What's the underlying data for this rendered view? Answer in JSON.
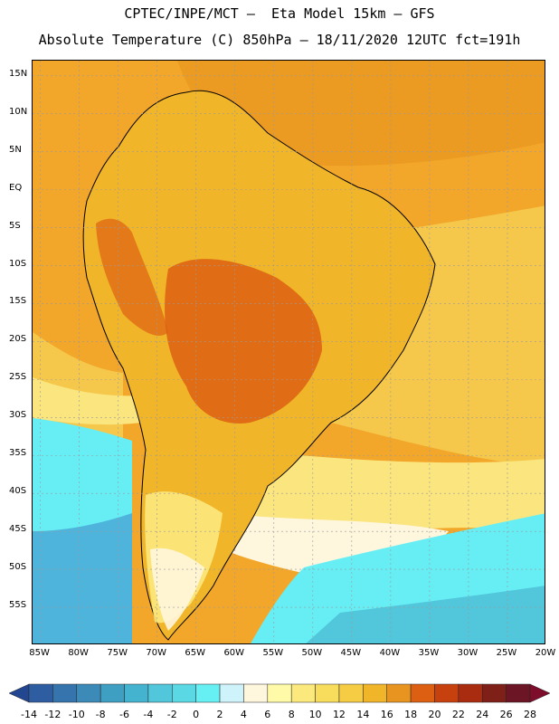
{
  "title": {
    "line1": "CPTEC/INPE/MCT –  Eta Model 15km – GFS",
    "line2": "Absolute Temperature (C) 850hPa – 18/11/2020 12UTC fct=191h"
  },
  "map": {
    "variable": "Absolute Temperature",
    "units": "C",
    "level": "850hPa",
    "lon_range": [
      -86,
      -20
    ],
    "lat_range": [
      -60,
      17
    ],
    "lat_ticks": [
      "15N",
      "10N",
      "5N",
      "EQ",
      "5S",
      "10S",
      "15S",
      "20S",
      "25S",
      "30S",
      "35S",
      "40S",
      "45S",
      "50S",
      "55S"
    ],
    "lon_ticks": [
      "85W",
      "80W",
      "75W",
      "70W",
      "65W",
      "60W",
      "55W",
      "50W",
      "45W",
      "40W",
      "35W",
      "30W",
      "25W",
      "20W"
    ],
    "colors": {
      "land_outline": "#000000",
      "grid": "#9a9a9a",
      "ocean_tropical": "#f2a72a",
      "ocean_subtropical": "#f5c84c",
      "ocean_mid": "#fbe57e",
      "cold_ocean": "#66eef4",
      "deep_cold": "#4fb4dc"
    }
  },
  "colorbar": {
    "labels": [
      "-14",
      "-12",
      "-10",
      "-8",
      "-6",
      "-4",
      "-2",
      "0",
      "2",
      "4",
      "6",
      "8",
      "10",
      "12",
      "14",
      "16",
      "18",
      "20",
      "22",
      "24",
      "26",
      "28"
    ],
    "colors": [
      "#22468f",
      "#2f5da1",
      "#3574ad",
      "#3c8ab8",
      "#3f9fc3",
      "#44b3cf",
      "#52c6da",
      "#5ad8e4",
      "#66f0f4",
      "#cff3fb",
      "#fff6de",
      "#fffaa7",
      "#fce97d",
      "#f8dc5c",
      "#f5cc44",
      "#f0b528",
      "#e89420",
      "#dd5f12",
      "#c7410e",
      "#aa2c10",
      "#7f2018",
      "#6b1525",
      "#7d0d2a"
    ]
  }
}
